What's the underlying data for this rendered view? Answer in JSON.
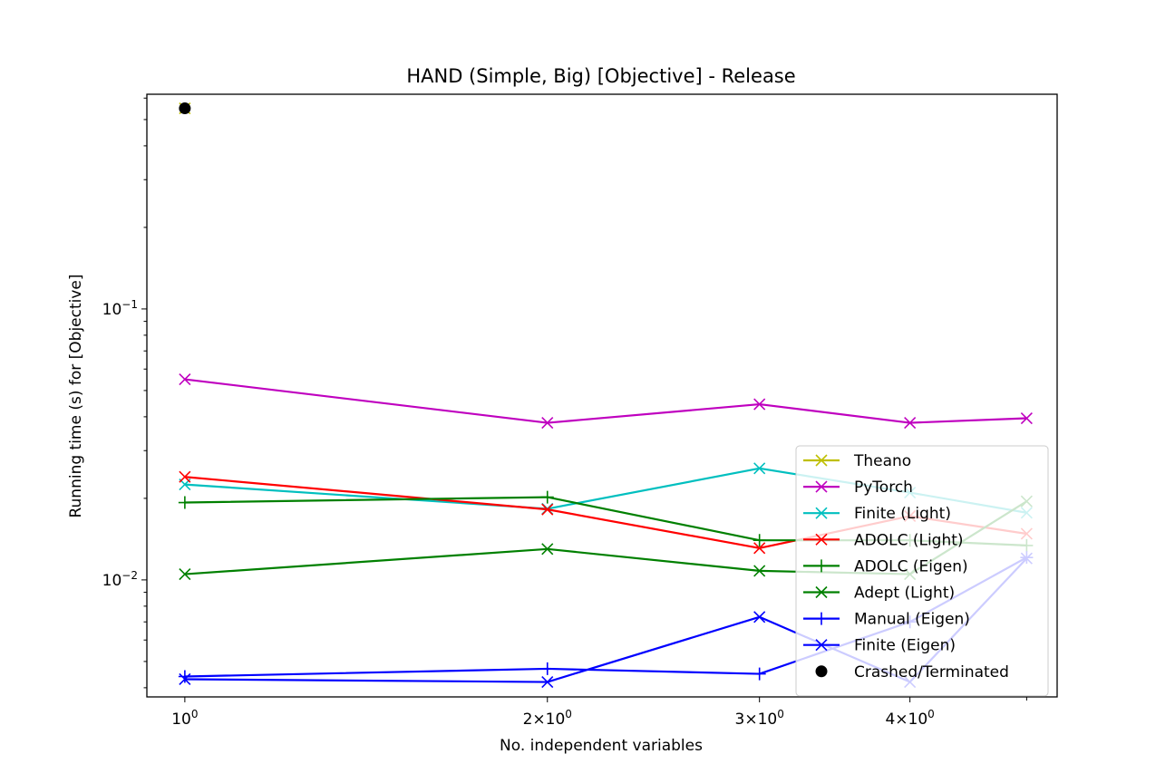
{
  "chart_data": {
    "type": "line",
    "title": "HAND (Simple, Big) [Objective] - Release",
    "xlabel": "No. independent variables",
    "ylabel": "Running time (s) for [Objective]",
    "x_scale": "log",
    "y_scale": "log",
    "x": [
      1,
      2,
      3,
      4,
      5
    ],
    "xlim": [
      0.93,
      5.3
    ],
    "ylim": [
      0.0037,
      0.62
    ],
    "x_ticks": [
      {
        "value": 1,
        "base": "10",
        "exp": "0",
        "coef": ""
      },
      {
        "value": 2,
        "base": "10",
        "exp": "0",
        "coef": "2"
      },
      {
        "value": 3,
        "base": "10",
        "exp": "0",
        "coef": "3"
      },
      {
        "value": 4,
        "base": "10",
        "exp": "0",
        "coef": "4"
      }
    ],
    "y_ticks": [
      {
        "value": 0.01,
        "base": "10",
        "exp": "−2"
      },
      {
        "value": 0.1,
        "base": "10",
        "exp": "−1"
      }
    ],
    "grid": false,
    "legend_position": "lower-right",
    "series": [
      {
        "name": "Theano",
        "color": "#bfbf00",
        "marker": "x",
        "x": [
          1
        ],
        "values": [
          0.55
        ]
      },
      {
        "name": "PyTorch",
        "color": "#bf00bf",
        "marker": "x",
        "x": [
          1,
          2,
          3,
          4,
          5
        ],
        "values": [
          0.055,
          0.038,
          0.0445,
          0.038,
          0.0395
        ]
      },
      {
        "name": "Finite (Light)",
        "color": "#00bfbf",
        "marker": "x",
        "x": [
          1,
          2,
          3,
          4,
          5
        ],
        "values": [
          0.0225,
          0.0183,
          0.0258,
          0.021,
          0.0177
        ]
      },
      {
        "name": "ADOLC (Light)",
        "color": "#ff0000",
        "marker": "x",
        "x": [
          1,
          2,
          3,
          4,
          5
        ],
        "values": [
          0.024,
          0.0182,
          0.0131,
          0.0172,
          0.0148
        ]
      },
      {
        "name": "ADOLC (Eigen)",
        "color": "#008000",
        "marker": "+",
        "x": [
          1,
          2,
          3,
          4,
          5
        ],
        "values": [
          0.0193,
          0.0202,
          0.014,
          0.014,
          0.0134
        ]
      },
      {
        "name": "Adept (Light)",
        "color": "#008000",
        "marker": "x",
        "x": [
          1,
          2,
          3,
          4,
          5
        ],
        "values": [
          0.0105,
          0.013,
          0.0108,
          0.0105,
          0.0195
        ]
      },
      {
        "name": "Manual (Eigen)",
        "color": "#0000ff",
        "marker": "+",
        "x": [
          1,
          2,
          3,
          4,
          5
        ],
        "values": [
          0.0044,
          0.0047,
          0.0045,
          0.007,
          0.0121
        ]
      },
      {
        "name": "Finite (Eigen)",
        "color": "#0000ff",
        "marker": "x",
        "x": [
          1,
          2,
          3,
          4,
          5
        ],
        "values": [
          0.0043,
          0.0042,
          0.0073,
          0.0042,
          0.012
        ]
      }
    ],
    "crashed": {
      "name": "Crashed/Terminated",
      "color": "#000000",
      "marker": "o",
      "x": [
        1
      ],
      "values": [
        0.55
      ]
    }
  }
}
